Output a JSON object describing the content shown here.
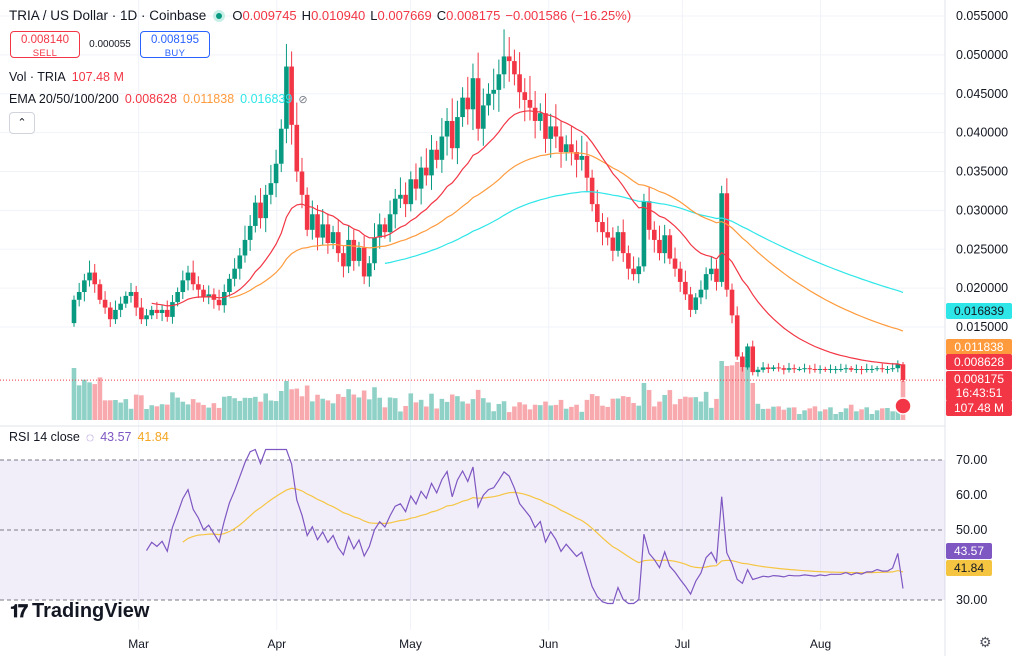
{
  "header": {
    "symbol": "TRIA / US Dollar · 1D · Coinbase",
    "open_key": "O",
    "open": "0.009745",
    "high_key": "H",
    "high": "0.010940",
    "low_key": "L",
    "low": "0.007669",
    "close_key": "C",
    "close": "0.008175",
    "change": "−0.001586 (−16.25%)"
  },
  "trade": {
    "sell_price": "0.008140",
    "sell_label": "SELL",
    "spread": "0.000055",
    "buy_price": "0.008195",
    "buy_label": "BUY"
  },
  "indicators": {
    "vol_label": "Vol · TRIA",
    "vol_value": "107.48 M",
    "ema_label": "EMA 20/50/100/200",
    "ema20": "0.008628",
    "ema50": "0.011838",
    "ema100": "0.016839",
    "rsi_label": "RSI 14 close",
    "rsi_value": "43.57",
    "rsi_ma_value": "41.84"
  },
  "colors": {
    "up": "#089981",
    "down": "#f23645",
    "up_vol": "#8fd1c6",
    "down_vol": "#f7a9ae",
    "ema20": "#f23645",
    "ema50": "#ff9b3d",
    "ema100": "#2ee6e8",
    "rsi": "#7e57c2",
    "rsi_ma": "#f5c542",
    "rsi_band": "#7e57c2"
  },
  "branding": {
    "logo_text": "TradingView"
  },
  "chart_data": [
    {
      "type": "candlestick",
      "title": "TRIA / US Dollar · 1D · Coinbase",
      "x_ticks": [
        "Mar",
        "Apr",
        "May",
        "Jun",
        "Jul",
        "Aug"
      ],
      "y_ticks": [
        "0.055000",
        "0.050000",
        "0.045000",
        "0.040000",
        "0.035000",
        "0.030000",
        "0.025000",
        "0.020000",
        "0.015000"
      ],
      "ylim": [
        0.0088,
        0.0555
      ],
      "price_labels": [
        {
          "text": "0.016839",
          "value": 0.016839,
          "color": "#2ee6e8",
          "textcolor": "#131722"
        },
        {
          "text": "0.011838",
          "value": 0.011838,
          "color": "#ff9b3d",
          "textcolor": "#ffffff"
        },
        {
          "text": "0.008628",
          "value": 0.008628,
          "color": "#f23645",
          "textcolor": "#ffffff"
        },
        {
          "text": "0.008175",
          "value": 0.008175,
          "color": "#f23645",
          "textcolor": "#ffffff"
        },
        {
          "text": "16:43:51",
          "value": null,
          "color": "#f23645",
          "textcolor": "#ffffff"
        },
        {
          "text": "107.48 M",
          "value": null,
          "color": "#f23645",
          "textcolor": "#ffffff"
        }
      ],
      "close": [
        0.0185,
        0.0195,
        0.021,
        0.022,
        0.0205,
        0.0185,
        0.0175,
        0.016,
        0.0172,
        0.018,
        0.019,
        0.0195,
        0.0175,
        0.016,
        0.0165,
        0.0172,
        0.0168,
        0.0172,
        0.0163,
        0.0182,
        0.0195,
        0.021,
        0.022,
        0.0205,
        0.0198,
        0.0188,
        0.0192,
        0.0185,
        0.0178,
        0.0195,
        0.0212,
        0.0225,
        0.0242,
        0.0262,
        0.028,
        0.031,
        0.029,
        0.032,
        0.0335,
        0.036,
        0.0405,
        0.0485,
        0.041,
        0.035,
        0.032,
        0.0275,
        0.0295,
        0.0265,
        0.0282,
        0.0258,
        0.0272,
        0.0245,
        0.0228,
        0.0262,
        0.0235,
        0.0252,
        0.0215,
        0.0232,
        0.0265,
        0.0282,
        0.0272,
        0.0295,
        0.0315,
        0.032,
        0.0308,
        0.034,
        0.0328,
        0.0355,
        0.0345,
        0.0378,
        0.0365,
        0.0395,
        0.0415,
        0.038,
        0.042,
        0.0445,
        0.043,
        0.047,
        0.0405,
        0.0435,
        0.045,
        0.0455,
        0.0475,
        0.0498,
        0.0492,
        0.0475,
        0.0452,
        0.0442,
        0.0432,
        0.0415,
        0.0425,
        0.0392,
        0.0408,
        0.0395,
        0.0375,
        0.0385,
        0.0375,
        0.0365,
        0.037,
        0.0342,
        0.0308,
        0.0285,
        0.0272,
        0.0265,
        0.0248,
        0.0272,
        0.0245,
        0.0225,
        0.0218,
        0.0228,
        0.0312,
        0.0275,
        0.0262,
        0.0245,
        0.0268,
        0.0238,
        0.0225,
        0.0208,
        0.0192,
        0.0172,
        0.0188,
        0.0198,
        0.0218,
        0.0225,
        0.0208,
        0.0322,
        0.0198,
        0.0165,
        0.0112,
        0.0098,
        0.0125,
        0.0092,
        0.0095,
        0.0098,
        0.0096,
        0.0098,
        0.0097,
        0.0095,
        0.0097,
        0.0096,
        0.0096,
        0.0097,
        0.0096,
        0.0095,
        0.0096,
        0.0095,
        0.0096,
        0.0096,
        0.0096,
        0.0097,
        0.0095,
        0.0096,
        0.0095,
        0.0096,
        0.0096,
        0.0097,
        0.0096,
        0.0096,
        0.0097,
        0.0102,
        0.008175
      ],
      "ema20_end": 0.008628,
      "ema50_end": 0.011838,
      "ema100_end": 0.016839
    },
    {
      "type": "line",
      "title": "RSI 14 close",
      "y_ticks": [
        "70.00",
        "60.00",
        "50.00",
        "30.00"
      ],
      "ylim": [
        28,
        73
      ],
      "band": [
        30,
        70
      ],
      "series": [
        {
          "name": "RSI 14 close",
          "last": 43.57
        },
        {
          "name": "RSI-based MA",
          "last": 41.84
        }
      ],
      "price_labels": [
        {
          "text": "43.57",
          "value": 43.57,
          "color": "#7e57c2",
          "textcolor": "#ffffff"
        },
        {
          "text": "41.84",
          "value": 41.84,
          "color": "#f5c542",
          "textcolor": "#131722"
        }
      ]
    }
  ]
}
